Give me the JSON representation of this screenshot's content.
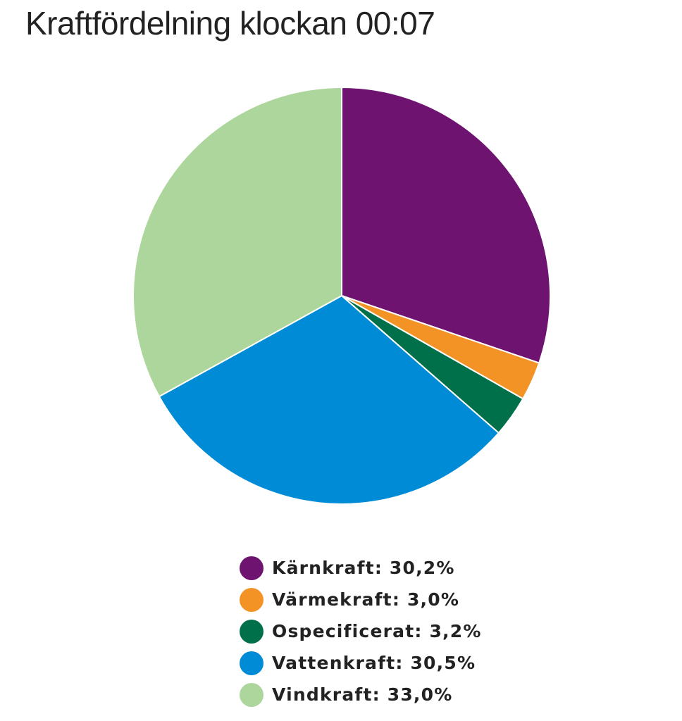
{
  "title": "Kraftfördelning klockan 00:07",
  "chart_data": {
    "type": "pie",
    "title": "Kraftfördelning klockan 00:07",
    "start_angle_deg": 0,
    "direction": "clockwise",
    "slices": [
      {
        "label": "Kärnkraft",
        "value": 30.2,
        "display": "30,2%",
        "color": "#6e1370"
      },
      {
        "label": "Värmekraft",
        "value": 3.0,
        "display": "3,0%",
        "color": "#f39325"
      },
      {
        "label": "Ospecificerat",
        "value": 3.2,
        "display": "3,2%",
        "color": "#00704a"
      },
      {
        "label": "Vattenkraft",
        "value": 30.5,
        "display": "30,5%",
        "color": "#008bd7"
      },
      {
        "label": "Vindkraft",
        "value": 33.0,
        "display": "33,0%",
        "color": "#acd69c"
      }
    ],
    "legend_position": "bottom"
  }
}
